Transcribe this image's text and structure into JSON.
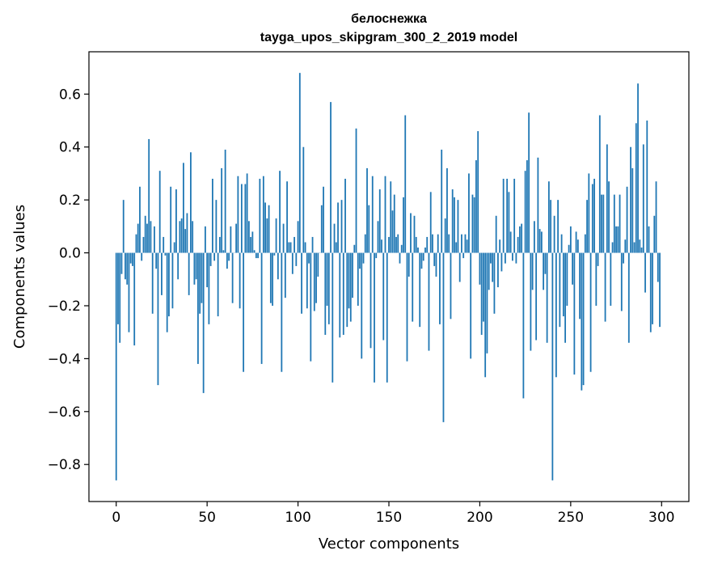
{
  "chart_data": {
    "type": "bar",
    "title_line1": "белоснежка",
    "title_line2": "tayga_upos_skipgram_300_2_2019 model",
    "xlabel": "Vector components",
    "ylabel": "Components values",
    "xlim": [
      -15,
      315
    ],
    "ylim": [
      -0.94,
      0.76
    ],
    "xticks": [
      0,
      50,
      100,
      150,
      200,
      250,
      300
    ],
    "yticks": [
      -0.8,
      -0.6,
      -0.4,
      -0.2,
      0.0,
      0.2,
      0.4,
      0.6
    ],
    "ytick_labels": [
      "−0.8",
      "−0.6",
      "−0.4",
      "−0.2",
      "0.0",
      "0.2",
      "0.4",
      "0.6"
    ],
    "bar_color": "#1f77b4",
    "grid": false,
    "x": "0..299 (component index)",
    "values": [
      -0.86,
      -0.27,
      -0.34,
      -0.08,
      0.2,
      -0.1,
      -0.12,
      -0.3,
      -0.04,
      -0.05,
      -0.35,
      0.07,
      0.11,
      0.25,
      -0.03,
      0.06,
      0.14,
      0.11,
      0.43,
      0.12,
      -0.23,
      0.1,
      -0.06,
      -0.5,
      0.31,
      -0.16,
      0.06,
      -0.01,
      -0.3,
      -0.24,
      0.25,
      -0.21,
      0.04,
      0.24,
      -0.1,
      0.12,
      0.13,
      0.34,
      0.09,
      0.15,
      -0.16,
      0.38,
      0.12,
      -0.12,
      -0.1,
      -0.42,
      -0.23,
      -0.19,
      -0.53,
      0.1,
      -0.13,
      -0.27,
      -0.05,
      0.28,
      -0.03,
      0.2,
      -0.24,
      0.06,
      0.32,
      0.01,
      0.39,
      -0.06,
      -0.03,
      0.1,
      -0.19,
      0.0,
      0.11,
      0.29,
      -0.21,
      0.26,
      -0.45,
      0.26,
      0.3,
      0.12,
      0.06,
      0.08,
      0.01,
      -0.02,
      -0.02,
      0.28,
      -0.42,
      0.29,
      0.19,
      0.13,
      0.18,
      -0.19,
      -0.2,
      -0.01,
      0.13,
      -0.1,
      0.31,
      -0.45,
      0.11,
      -0.17,
      0.27,
      0.04,
      0.04,
      -0.08,
      0.06,
      -0.05,
      0.12,
      0.68,
      -0.23,
      0.4,
      0.04,
      -0.21,
      -0.04,
      -0.41,
      0.06,
      -0.22,
      -0.19,
      -0.09,
      0.0,
      0.18,
      0.25,
      -0.31,
      -0.2,
      -0.27,
      0.57,
      -0.49,
      0.11,
      0.04,
      0.19,
      -0.32,
      0.2,
      -0.31,
      0.28,
      -0.28,
      -0.21,
      -0.26,
      -0.17,
      0.03,
      0.47,
      -0.2,
      -0.06,
      -0.4,
      -0.04,
      0.07,
      0.32,
      0.18,
      -0.36,
      0.29,
      -0.49,
      -0.02,
      0.12,
      0.24,
      0.05,
      -0.33,
      0.29,
      -0.49,
      0.06,
      0.27,
      0.16,
      0.22,
      0.06,
      0.07,
      -0.04,
      0.03,
      0.21,
      0.52,
      -0.41,
      -0.09,
      0.15,
      -0.26,
      0.14,
      0.06,
      0.02,
      -0.28,
      -0.06,
      -0.03,
      0.02,
      0.06,
      -0.37,
      0.23,
      0.07,
      -0.05,
      -0.09,
      0.07,
      -0.27,
      0.39,
      -0.64,
      0.13,
      0.32,
      0.07,
      -0.25,
      0.24,
      0.21,
      0.04,
      0.2,
      -0.11,
      0.07,
      -0.02,
      0.07,
      0.05,
      0.3,
      -0.4,
      0.22,
      0.21,
      0.35,
      0.46,
      -0.12,
      -0.31,
      -0.26,
      -0.47,
      -0.38,
      -0.14,
      -0.04,
      -0.11,
      -0.23,
      0.14,
      -0.13,
      0.05,
      -0.07,
      0.28,
      -0.04,
      0.28,
      0.23,
      0.08,
      -0.03,
      0.28,
      -0.04,
      0.06,
      0.1,
      0.11,
      -0.55,
      0.31,
      0.35,
      0.53,
      -0.37,
      -0.14,
      0.12,
      -0.33,
      0.36,
      0.09,
      0.08,
      -0.14,
      -0.08,
      -0.34,
      0.27,
      0.2,
      -0.86,
      0.14,
      -0.47,
      0.2,
      -0.28,
      0.07,
      -0.24,
      -0.34,
      -0.2,
      0.03,
      0.1,
      -0.12,
      -0.46,
      0.08,
      0.05,
      -0.25,
      -0.52,
      -0.5,
      0.07,
      0.2,
      0.3,
      -0.45,
      0.26,
      0.28,
      -0.2,
      -0.05,
      0.52,
      0.22,
      0.22,
      -0.26,
      0.41,
      0.27,
      -0.2,
      0.04,
      0.22,
      0.1,
      0.1,
      0.22,
      -0.22,
      -0.04,
      0.05,
      0.25,
      -0.34,
      0.4,
      0.32,
      0.04,
      0.49,
      0.64,
      0.05,
      0.02,
      0.41,
      -0.15,
      0.5,
      0.1,
      -0.3,
      -0.27,
      0.14,
      0.27,
      -0.11,
      -0.28
    ]
  }
}
